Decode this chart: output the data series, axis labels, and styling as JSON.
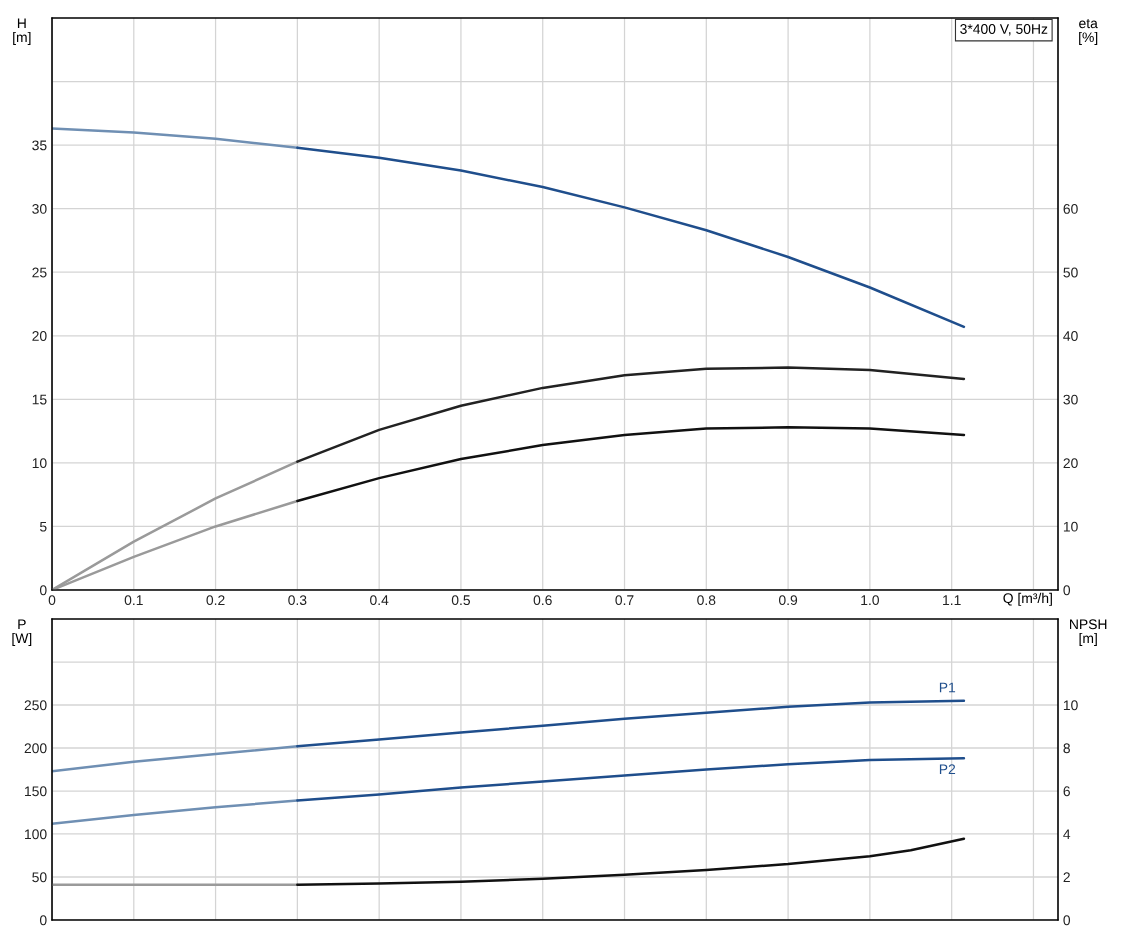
{
  "chart_data": [
    {
      "type": "line",
      "xlabel": "Q [m³/h]",
      "ylabel": "H\n[m]",
      "y2label": "eta\n[%]",
      "annotations": [
        "3*400 V, 50Hz"
      ],
      "xlim": [
        0,
        1.23
      ],
      "xticks": [
        0,
        0.1,
        0.2,
        0.3,
        0.4,
        0.5,
        0.6,
        0.7,
        0.8,
        0.9,
        {
          "value": 1.0,
          "label": "1.0"
        },
        1.1,
        {
          "value": 1.2,
          "label": null
        }
      ],
      "ylim": [
        0,
        45
      ],
      "yticks": [
        0,
        5,
        10,
        15,
        20,
        25,
        30,
        35,
        {
          "value": 40,
          "label": null
        }
      ],
      "y2lim": [
        0,
        90
      ],
      "y2ticks": [
        0,
        10,
        20,
        30,
        40,
        50,
        60
      ],
      "grid": true,
      "legend": false,
      "series": [
        {
          "color": "#6f8fb3",
          "x": [
            0,
            0.1,
            0.2,
            0.3
          ],
          "values": [
            36.3,
            36.0,
            35.5,
            34.8
          ]
        },
        {
          "color": "#1f4e8c",
          "x": [
            0.3,
            0.4,
            0.5,
            0.6,
            0.7,
            0.8,
            0.9,
            1.0,
            1.115
          ],
          "values": [
            34.8,
            34.0,
            33.0,
            31.7,
            30.1,
            28.3,
            26.2,
            23.8,
            20.7
          ]
        },
        {
          "color": "#9a9a9a",
          "axis": "y2",
          "x": [
            0,
            0.1,
            0.2,
            0.3
          ],
          "values": [
            0,
            7.6,
            14.4,
            20.2
          ]
        },
        {
          "color": "#222222",
          "axis": "y2",
          "x": [
            0.3,
            0.4,
            0.5,
            0.6,
            0.7,
            0.8,
            0.9,
            1.0,
            1.115
          ],
          "values": [
            20.2,
            25.2,
            29,
            31.8,
            33.8,
            34.8,
            35,
            34.6,
            33.2
          ]
        },
        {
          "color": "#9a9a9a",
          "axis": "y2",
          "x": [
            0,
            0.1,
            0.2,
            0.3
          ],
          "values": [
            0,
            5.2,
            10,
            14
          ]
        },
        {
          "color": "#111111",
          "axis": "y2",
          "x": [
            0.3,
            0.4,
            0.5,
            0.6,
            0.7,
            0.8,
            0.9,
            1.0,
            1.115
          ],
          "values": [
            14,
            17.6,
            20.6,
            22.8,
            24.4,
            25.4,
            25.6,
            25.4,
            24.4
          ]
        }
      ]
    },
    {
      "type": "line",
      "ylabel": "P\n[W]",
      "y2label": "NPSH\n[m]",
      "tick_labels": "y",
      "xlim": [
        0,
        1.23
      ],
      "xticks": [
        0,
        0.1,
        0.2,
        0.3,
        0.4,
        0.5,
        0.6,
        0.7,
        0.8,
        0.9,
        1.0,
        1.1,
        1.2
      ],
      "ylim": [
        0,
        350
      ],
      "yticks": [
        0,
        50,
        100,
        150,
        200,
        250,
        {
          "value": 300,
          "label": null
        }
      ],
      "y2lim": [
        0,
        14
      ],
      "y2ticks": [
        0,
        2,
        4,
        6,
        8,
        10
      ],
      "grid": true,
      "legend": false,
      "series": [
        {
          "color": "#6f8fb3",
          "x": [
            0,
            0.1,
            0.2,
            0.3
          ],
          "values": [
            173,
            184,
            193,
            202
          ]
        },
        {
          "name": "P1",
          "color": "#1f4e8c",
          "x": [
            0.3,
            0.4,
            0.5,
            0.6,
            0.7,
            0.8,
            0.9,
            1.0,
            1.115
          ],
          "values": [
            202,
            210,
            218,
            226,
            234,
            241,
            248,
            253,
            255
          ]
        },
        {
          "color": "#6f8fb3",
          "x": [
            0,
            0.1,
            0.2,
            0.3
          ],
          "values": [
            112,
            122,
            131,
            139
          ]
        },
        {
          "name": "P2",
          "color": "#1f4e8c",
          "x": [
            0.3,
            0.4,
            0.5,
            0.6,
            0.7,
            0.8,
            0.9,
            1.0,
            1.115
          ],
          "values": [
            139,
            146,
            154,
            161,
            168,
            175,
            181,
            186,
            188
          ]
        },
        {
          "color": "#9a9a9a",
          "axis": "y2",
          "x": [
            0,
            0.1,
            0.2,
            0.3
          ],
          "values": [
            1.64,
            1.64,
            1.64,
            1.64
          ]
        },
        {
          "color": "#111111",
          "axis": "y2",
          "x": [
            0.3,
            0.4,
            0.5,
            0.6,
            0.7,
            0.8,
            0.9,
            1.0,
            1.05,
            1.115
          ],
          "values": [
            1.64,
            1.7,
            1.78,
            1.92,
            2.1,
            2.33,
            2.6,
            2.96,
            3.24,
            3.78
          ]
        }
      ]
    }
  ]
}
